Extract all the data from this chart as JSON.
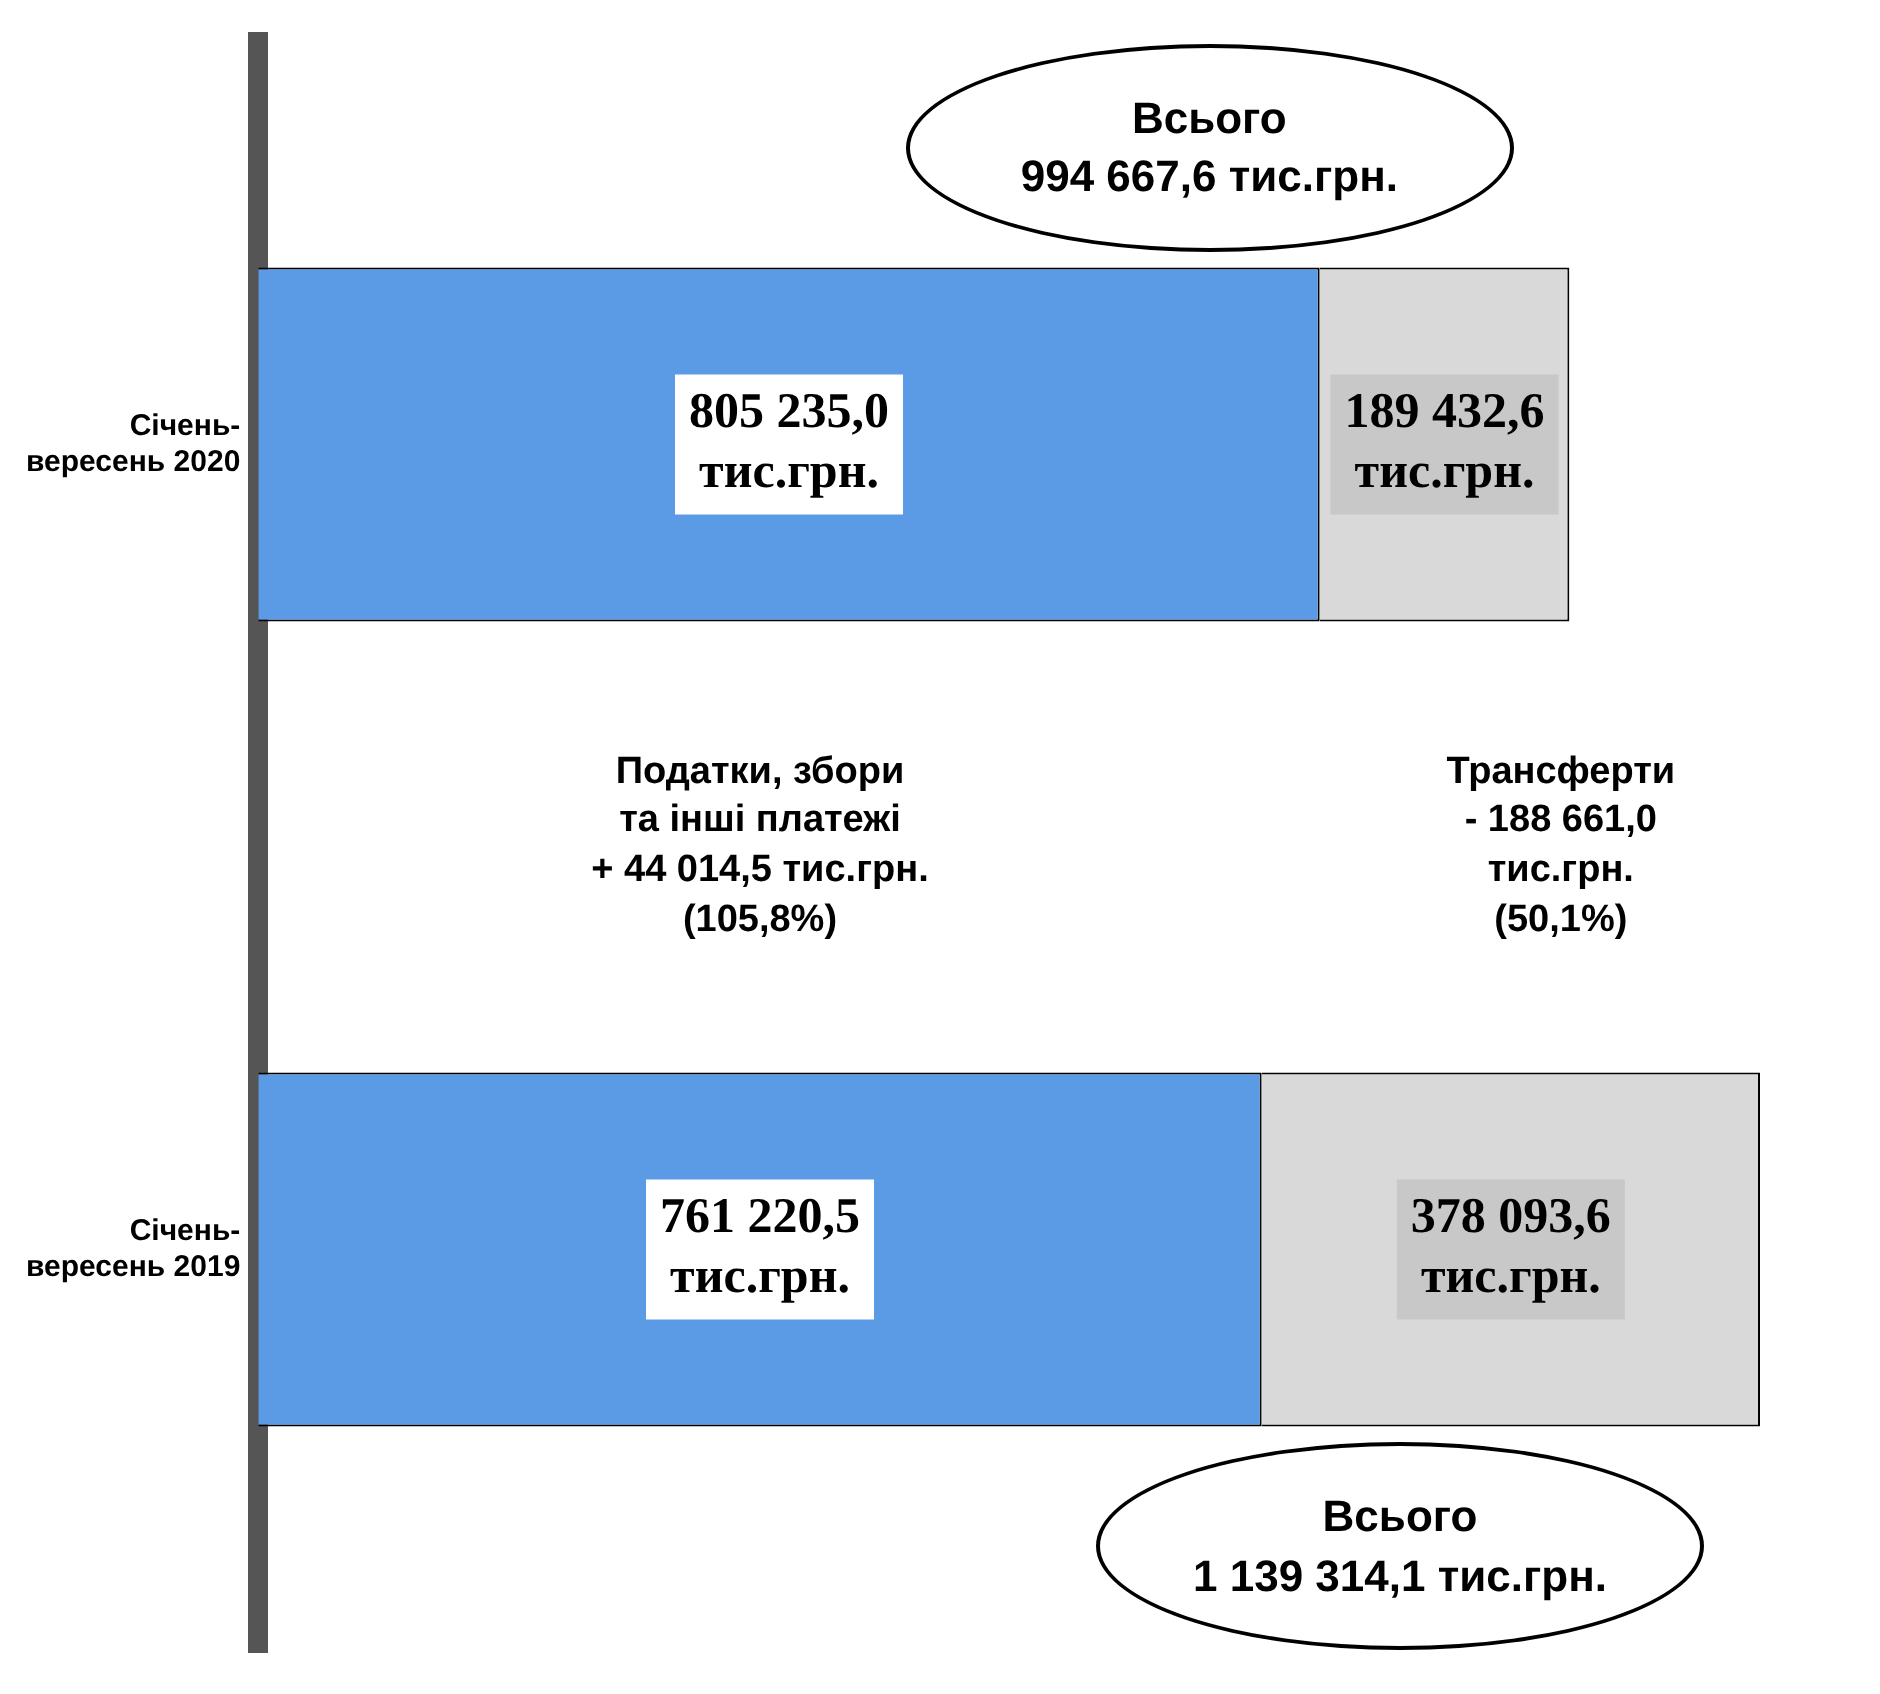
{
  "chart_data": {
    "type": "bar",
    "orientation": "horizontal",
    "stacked": true,
    "categories": [
      "Січень-вересень 2020",
      "Січень-вересень 2019"
    ],
    "series": [
      {
        "color": "#5b9be6",
        "values": [
          805235.0,
          761220.5
        ],
        "value_labels": [
          "805 235,0 тис.грн.",
          "761 220,5 тис.грн."
        ]
      },
      {
        "color": "#d9d9d9",
        "values": [
          189432.6,
          378093.6
        ],
        "value_labels": [
          "189 432,6 тис.грн.",
          "378 093,6 тис.грн."
        ]
      }
    ],
    "totals": [
      "Всього 994 667,6 тис.грн.",
      "Всього 1 139 314,1 тис.грн."
    ],
    "annotations": [
      "Податки, збори\nта інші платежі\n+ 44 014,5 тис.грн.\n(105,8%)",
      "Трансферти\n- 188 661,0 тис.грн.\n(50,1%)"
    ],
    "legend": false,
    "grid": false,
    "tick_labels": "y"
  }
}
